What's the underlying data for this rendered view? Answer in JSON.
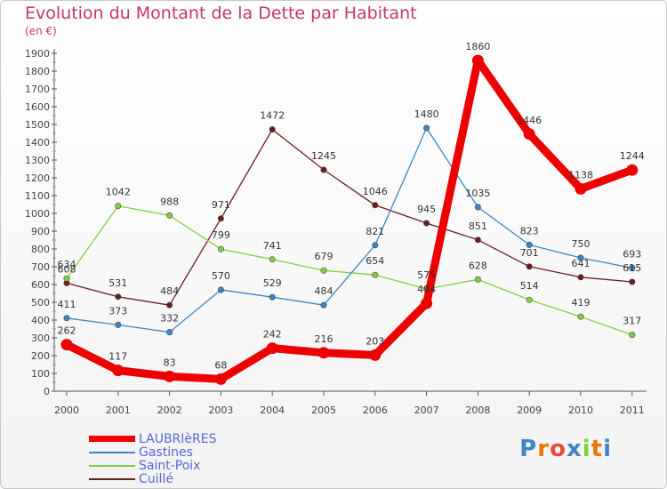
{
  "chart_data": {
    "type": "line",
    "title": "Evolution du Montant de la Dette par Habitant",
    "subtitle": "(en €)",
    "categories": [
      "2000",
      "2001",
      "2002",
      "2003",
      "2004",
      "2005",
      "2006",
      "2007",
      "2008",
      "2009",
      "2010",
      "2011"
    ],
    "ylim": [
      0,
      1900
    ],
    "yticks": [
      0,
      100,
      200,
      300,
      400,
      500,
      600,
      700,
      800,
      900,
      1000,
      1100,
      1200,
      1300,
      1400,
      1500,
      1600,
      1700,
      1800,
      1900
    ],
    "grid": false,
    "legend_position": "bottom-left",
    "series": [
      {
        "name": "LAUBRIèRES",
        "color": "#ee0000",
        "values": [
          262,
          117,
          83,
          68,
          242,
          216,
          203,
          494,
          1860,
          1446,
          1138,
          1244
        ]
      },
      {
        "name": "Gastines",
        "color": "#3d85c6",
        "values": [
          411,
          373,
          332,
          570,
          529,
          484,
          821,
          1480,
          1035,
          823,
          750,
          693
        ]
      },
      {
        "name": "Saint-Poix",
        "color": "#7fd13b",
        "values": [
          634,
          1042,
          988,
          799,
          741,
          679,
          654,
          575,
          628,
          514,
          419,
          317
        ]
      },
      {
        "name": "Cuillé",
        "color": "#6b1e1e",
        "values": [
          608,
          531,
          484,
          971,
          1472,
          1245,
          1046,
          945,
          851,
          701,
          641,
          615
        ]
      }
    ]
  },
  "brand": "Proxiti"
}
